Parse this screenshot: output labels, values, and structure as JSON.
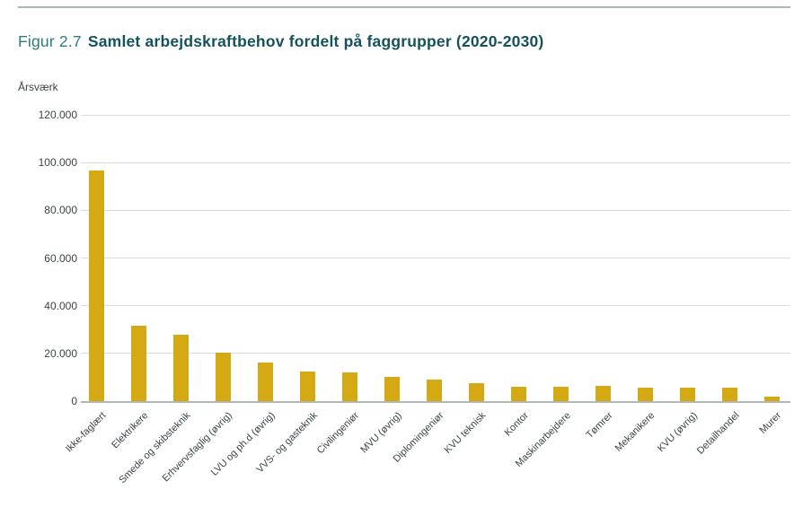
{
  "figure": {
    "label": "Figur 2.7",
    "title": "Samlet arbejdskraftbehov fordelt på faggrupper (2020-2030)"
  },
  "chart_data": {
    "type": "bar",
    "title": "Samlet arbejdskraftbehov fordelt på faggrupper (2020-2030)",
    "xlabel": "",
    "ylabel": "Årsværk",
    "unit": "Årsværk",
    "categories": [
      "Ikke-faglært",
      "Elektrikere",
      "Smede og skibsteknik",
      "Erhvervsfaglig (øvrig)",
      "LVU og ph.d (øvrig)",
      "VVS- og gasteknik",
      "Civilingeniør",
      "MVU (øvrig)",
      "Diplomingeniør",
      "KVU teknisk",
      "Kontor",
      "Maskinarbejdere",
      "Tømrer",
      "Mekanikere",
      "KVU (øvrig)",
      "Detailhandel",
      "Murer"
    ],
    "values": [
      96500,
      31500,
      28000,
      20500,
      16000,
      12500,
      12000,
      10200,
      9100,
      7400,
      6200,
      6200,
      6300,
      5500,
      5600,
      5500,
      2000
    ],
    "ylim": [
      0,
      120000
    ],
    "ytick_values": [
      120000,
      100000,
      80000,
      60000,
      40000,
      20000,
      0
    ],
    "ytick_labels": [
      "120.000",
      "100.000",
      "80.000",
      "60.000",
      "40.000",
      "20.000",
      "0"
    ],
    "grid": true,
    "legend_position": "none",
    "bar_color": "#d4a913"
  },
  "colors": {
    "background": "#ffffff",
    "bar": "#d4a913",
    "figure_label": "#2f7b80",
    "figure_title": "#15525c",
    "axis_text": "#3c4446",
    "gridline": "#d9dddd",
    "axis_line": "#aeb8b8",
    "top_rule": "#a9b5b4"
  }
}
